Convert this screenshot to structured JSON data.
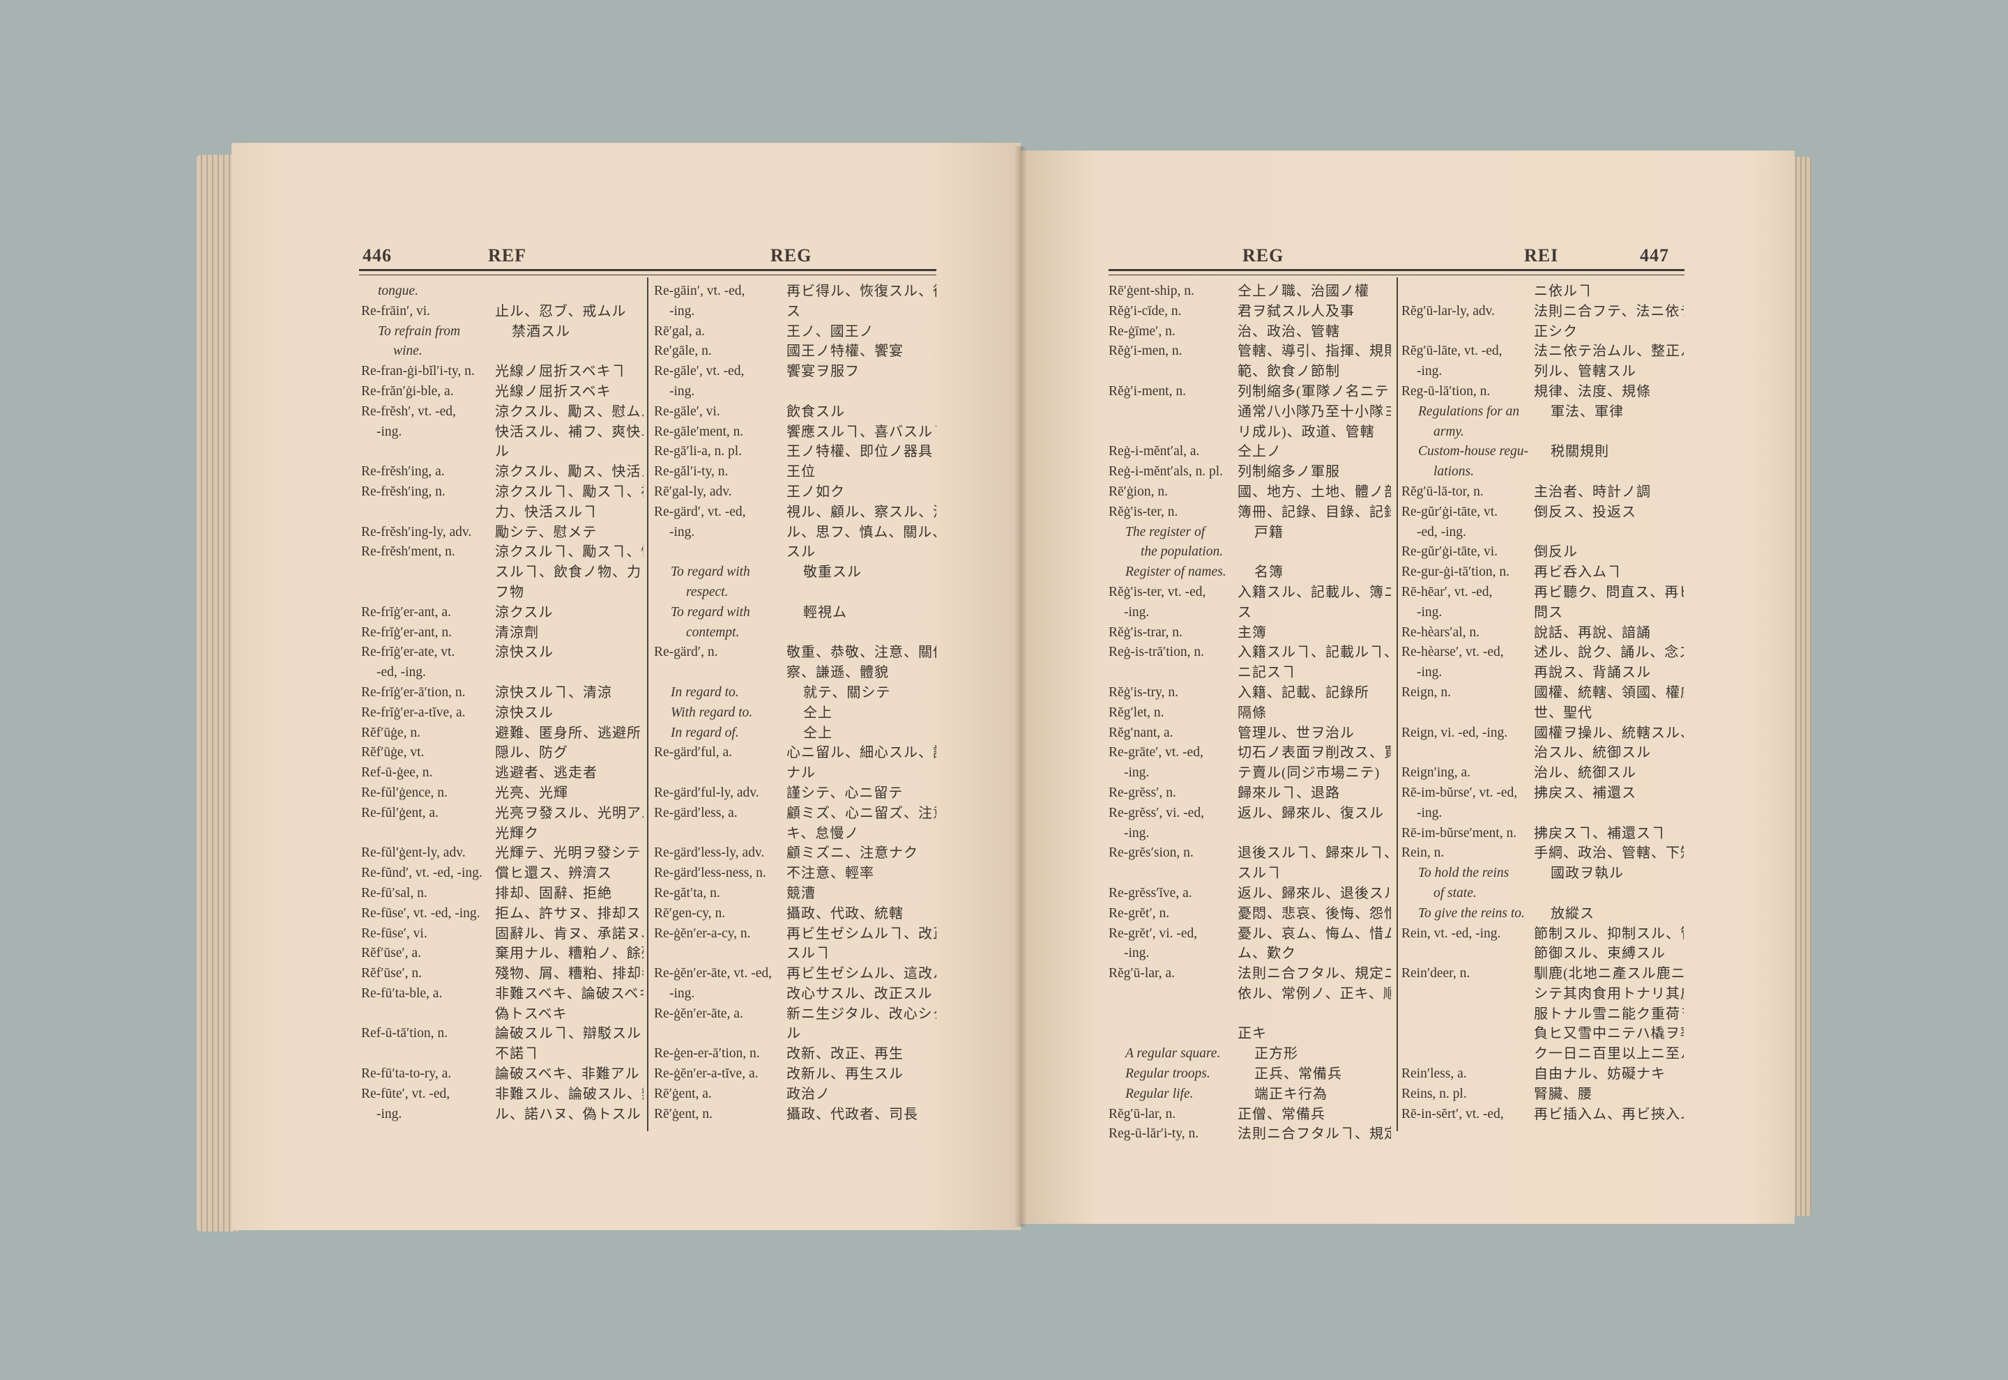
{
  "left_page": {
    "page_number": "446",
    "guide_word_left": "REF",
    "guide_word_right": "REG",
    "columns": [
      [
        {
          "en": [
            "tongue."
          ],
          "ja": [],
          "sub": true
        },
        {
          "en": [
            "Re-frāin′, vi."
          ],
          "ja": [
            "止ル、忍ブ、戒ムル"
          ]
        },
        {
          "en": [
            "To refrain from",
            "wine."
          ],
          "ja": [
            "禁酒スル"
          ],
          "sub": true
        },
        {
          "en": [
            "Re-fran-ġi-bĭl′i-ty, n."
          ],
          "ja": [
            "光線ノ屈折スベキヿ"
          ]
        },
        {
          "en": [
            "Re-frăn′ġi-ble, a."
          ],
          "ja": [
            "光線ノ屈折スベキ"
          ]
        },
        {
          "en": [
            "Re-frĕsh′, vt. -ed,",
            "-ing."
          ],
          "ja": [
            "涼クスル、勵ス、慰ムル、",
            "快活スル、補フ、爽快ニス",
            "ル"
          ]
        },
        {
          "en": [
            "Re-frĕsh′ing, a."
          ],
          "ja": [
            "涼クスル、勵ス、快活スル"
          ]
        },
        {
          "en": [
            "Re-frĕsh′ing, n."
          ],
          "ja": [
            "涼クスルヿ、勵スヿ、補",
            "力、快活スルヿ"
          ]
        },
        {
          "en": [
            "Re-frĕsh′ing-ly, adv."
          ],
          "ja": [
            "勵シテ、慰メテ"
          ]
        },
        {
          "en": [
            "Re-frĕsh′ment, n."
          ],
          "ja": [
            "涼クスルヿ、勵スヿ、快活",
            "スルヿ、飲食ノ物、力ヲ補",
            "フ物"
          ]
        },
        {
          "en": [
            "Re-frĭġ′er-ant, a."
          ],
          "ja": [
            "涼クスル"
          ]
        },
        {
          "en": [
            "Re-frĭġ′er-ant, n."
          ],
          "ja": [
            "清涼劑"
          ]
        },
        {
          "en": [
            "Re-frĭġ′er-ate, vt.",
            "-ed, -ing."
          ],
          "ja": [
            "涼快スル"
          ]
        },
        {
          "en": [
            "Re-frĭġ′er-ā′tion, n."
          ],
          "ja": [
            "涼快スルヿ、清涼"
          ]
        },
        {
          "en": [
            "Re-frĭġ′er-a-tĭve, a."
          ],
          "ja": [
            "涼快スル"
          ]
        },
        {
          "en": [
            "Rĕf′ūġe, n."
          ],
          "ja": [
            "避難、匿身所、逃避所"
          ]
        },
        {
          "en": [
            "Rĕf′ūġe, vt."
          ],
          "ja": [
            "隠ル、防グ"
          ]
        },
        {
          "en": [
            "Ref-ū-ġee, n."
          ],
          "ja": [
            "逃避者、逃走者"
          ]
        },
        {
          "en": [
            "Re-fŭl′ġence, n."
          ],
          "ja": [
            "光亮、光輝"
          ]
        },
        {
          "en": [
            "Re-fŭl′ġent, a."
          ],
          "ja": [
            "光亮ヲ發スル、光明アル、",
            "光輝ク"
          ]
        },
        {
          "en": [
            "Re-fŭl′ġent-ly, adv."
          ],
          "ja": [
            "光輝テ、光明ヲ發シテ"
          ]
        },
        {
          "en": [
            "Re-fŭnd′, vt. -ed, -ing."
          ],
          "ja": [
            "償ヒ還ス、辨濟ス"
          ]
        },
        {
          "en": [
            "Re-fū′sal, n."
          ],
          "ja": [
            "排却、固辭、拒絶"
          ]
        },
        {
          "en": [
            "Re-fūse′, vt. -ed, -ing."
          ],
          "ja": [
            "拒ム、許サヌ、排却ス"
          ]
        },
        {
          "en": [
            "Re-fūse′, vi."
          ],
          "ja": [
            "固辭ル、肯ヌ、承諾ヌ、嫌フ"
          ]
        },
        {
          "en": [
            "Rĕf′ūse′, a."
          ],
          "ja": [
            "棄用ナル、糟粕ノ、餘殘ノ"
          ]
        },
        {
          "en": [
            "Rĕf′ūse′, n."
          ],
          "ja": [
            "殘物、屑、糟粕、排却者"
          ]
        },
        {
          "en": [
            "Re-fū′ta-ble, a."
          ],
          "ja": [
            "非難スベキ、論破スベキ、",
            "偽トスベキ"
          ]
        },
        {
          "en": [
            "Ref-ū-tā′tion, n."
          ],
          "ja": [
            "論破スルヿ、辯駁スルヿ、",
            "不諾ヿ"
          ]
        },
        {
          "en": [
            "Re-fū′ta-to-ry, a."
          ],
          "ja": [
            "論破スベキ、非難アル"
          ]
        },
        {
          "en": [
            "Re-fūte′, vt. -ed,",
            "-ing."
          ],
          "ja": [
            "非難スル、論破スル、辯倒",
            "ル、諾ハヌ、偽トスル"
          ]
        }
      ],
      [
        {
          "en": [
            "Re-gāin′, vt. -ed,",
            "-ing."
          ],
          "ja": [
            "再ビ得ル、恢復スル、復獲",
            "ス"
          ]
        },
        {
          "en": [
            "Rē′gal, a."
          ],
          "ja": [
            "王ノ、國王ノ"
          ]
        },
        {
          "en": [
            "Re′gāle, n."
          ],
          "ja": [
            "國王ノ特權、饗宴"
          ]
        },
        {
          "en": [
            "Re-gāle′, vt. -ed,",
            "-ing."
          ],
          "ja": [
            "饗宴ヲ服フ"
          ]
        },
        {
          "en": [
            "Re-gāle′, vi."
          ],
          "ja": [
            "飲食スル"
          ]
        },
        {
          "en": [
            "Re-gāle′ment, n."
          ],
          "ja": [
            "饗應スルヿ、喜バスルヿ"
          ]
        },
        {
          "en": [
            "Re-gā′li-a, n. pl."
          ],
          "ja": [
            "王ノ特權、即位ノ器具"
          ]
        },
        {
          "en": [
            "Re-găl′i-ty, n."
          ],
          "ja": [
            "王位"
          ]
        },
        {
          "en": [
            "Rē′gal-ly, adv."
          ],
          "ja": [
            "王ノ如ク"
          ]
        },
        {
          "en": [
            "Re-gärd′, vt. -ed,",
            "-ing."
          ],
          "ja": [
            "視ル、顧ル、察スル、注意",
            "ル、思フ、慎ム、關ル、敬",
            "スル"
          ]
        },
        {
          "en": [
            "To regard with",
            "respect."
          ],
          "ja": [
            "敬重スル"
          ],
          "sub": true
        },
        {
          "en": [
            "To regard with",
            "contempt."
          ],
          "ja": [
            "輕視ム"
          ],
          "sub": true
        },
        {
          "en": [
            "Re-gärd′, n."
          ],
          "ja": [
            "敬重、恭敬、注意、關係、思",
            "察、謙遜、體貌"
          ]
        },
        {
          "en": [
            "In regard to."
          ],
          "ja": [
            "就テ、關シテ"
          ],
          "sub": true
        },
        {
          "en": [
            "With regard to."
          ],
          "ja": [
            "仝上"
          ],
          "sub": true
        },
        {
          "en": [
            "In regard of."
          ],
          "ja": [
            "仝上"
          ],
          "sub": true
        },
        {
          "en": [
            "Re-gärd′ful, a."
          ],
          "ja": [
            "心ニ留ル、細心スル、謹慎",
            "ナル"
          ]
        },
        {
          "en": [
            "Re-gärd′ful-ly, adv."
          ],
          "ja": [
            "謹シテ、心ニ留テ"
          ]
        },
        {
          "en": [
            "Re-gärd′less, a."
          ],
          "ja": [
            "顧ミズ、心ニ留ズ、注意ナ",
            "キ、怠慢ノ"
          ]
        },
        {
          "en": [
            "Re-gärd′less-ly, adv."
          ],
          "ja": [
            "顧ミズニ、注意ナク"
          ]
        },
        {
          "en": [
            "Re-gärd′less-ness, n."
          ],
          "ja": [
            "不注意、輕率"
          ]
        },
        {
          "en": [
            "Re-găt′ta, n."
          ],
          "ja": [
            "競漕"
          ]
        },
        {
          "en": [
            "Rē′gen-cy, n."
          ],
          "ja": [
            "攝政、代政、統轄"
          ]
        },
        {
          "en": [
            "Re-ġĕn′er-a-cy, n."
          ],
          "ja": [
            "再ビ生ゼシムルヿ、改正",
            "スルヿ"
          ]
        },
        {
          "en": [
            "Re-ġĕn′er-āte, vt. -ed,",
            "-ing."
          ],
          "ja": [
            "再ビ生ゼシムル、這改ル、",
            "改心サスル、改正スル"
          ]
        },
        {
          "en": [
            "Re-ġĕn′er-āte, a."
          ],
          "ja": [
            "新ニ生ジタル、改心シタ",
            "ル"
          ]
        },
        {
          "en": [
            "Re-ġen-er-ā′tion, n."
          ],
          "ja": [
            "改新、改正、再生"
          ]
        },
        {
          "en": [
            "Re-ġĕn′er-a-tĭve, a."
          ],
          "ja": [
            "改新ル、再生スル"
          ]
        },
        {
          "en": [
            "Rē′ġent, a."
          ],
          "ja": [
            "政治ノ"
          ]
        },
        {
          "en": [
            "Rē′ġent, n."
          ],
          "ja": [
            "攝政、代政者、司長"
          ]
        }
      ]
    ]
  },
  "right_page": {
    "page_number": "447",
    "guide_word_left": "REG",
    "guide_word_right": "REI",
    "columns": [
      [
        {
          "en": [
            "Rē′ġent-ship, n."
          ],
          "ja": [
            "仝上ノ職、治國ノ權"
          ]
        },
        {
          "en": [
            "Rĕġ′i-cīde, n."
          ],
          "ja": [
            "君ヲ弑スル人及事"
          ]
        },
        {
          "en": [
            "Re-ġīme′, n."
          ],
          "ja": [
            "治、政治、管轄"
          ]
        },
        {
          "en": [
            "Rĕġ′i-men, n."
          ],
          "ja": [
            "管轄、導引、指揮、規則、規",
            "範、飲食ノ節制"
          ]
        },
        {
          "en": [
            "Rĕġ′i-ment, n."
          ],
          "ja": [
            "列制縮多(軍隊ノ名ニテ",
            "通常八小隊乃至十小隊ヨ",
            "リ成ル)、政道、管轄"
          ]
        },
        {
          "en": [
            "Reġ-i-mĕnt′al, a."
          ],
          "ja": [
            "仝上ノ"
          ]
        },
        {
          "en": [
            "Reġ-i-mĕnt′als, n. pl."
          ],
          "ja": [
            "列制縮多ノ軍服"
          ]
        },
        {
          "en": [
            "Rē′ġion, n."
          ],
          "ja": [
            "國、地方、土地、體ノ部分"
          ]
        },
        {
          "en": [
            "Rĕġ′is-ter, n."
          ],
          "ja": [
            "簿冊、記錄、目錄、記錄者"
          ]
        },
        {
          "en": [
            "The register of",
            "the population."
          ],
          "ja": [
            "戸籍"
          ],
          "sub": true
        },
        {
          "en": [
            "Register of names."
          ],
          "ja": [
            "名簿"
          ],
          "sub": true
        },
        {
          "en": [
            "Rĕġ′is-ter, vt. -ed,",
            "-ing."
          ],
          "ja": [
            "入籍スル、記載ル、簿ニ記",
            "ス"
          ]
        },
        {
          "en": [
            "Rĕġ′is-trar, n."
          ],
          "ja": [
            "主簿"
          ]
        },
        {
          "en": [
            "Reġ-is-trā′tion, n."
          ],
          "ja": [
            "入籍スルヿ、記載ルヿ、簿",
            "ニ記スヿ"
          ]
        },
        {
          "en": [
            "Rĕġ′is-try, n."
          ],
          "ja": [
            "入籍、記載、記錄所"
          ]
        },
        {
          "en": [
            "Rĕg′let, n."
          ],
          "ja": [
            "隔條"
          ]
        },
        {
          "en": [
            "Rĕg′nant, a."
          ],
          "ja": [
            "管理ル、世ヲ治ル"
          ]
        },
        {
          "en": [
            "Re-grāte′, vt. -ed,",
            "-ing."
          ],
          "ja": [
            "切石ノ表面ヲ削改ス、買",
            "テ賣ル(同ジ市場ニテ)"
          ]
        },
        {
          "en": [
            "Re-grĕss′, n."
          ],
          "ja": [
            "歸來ルヿ、退路"
          ]
        },
        {
          "en": [
            "Re-grĕss′, vi. -ed,",
            "-ing."
          ],
          "ja": [
            "返ル、歸來ル、復スル"
          ]
        },
        {
          "en": [
            "Re-grĕs′sion, n."
          ],
          "ja": [
            "退後スルヿ、歸來ルヿ、復",
            "スルヿ"
          ]
        },
        {
          "en": [
            "Re-grĕss′ĭve, a."
          ],
          "ja": [
            "返ル、歸來ル、退後スル"
          ]
        },
        {
          "en": [
            "Re-grĕt′, n."
          ],
          "ja": [
            "憂悶、悲哀、後悔、怨恨"
          ]
        },
        {
          "en": [
            "Re-grĕt′, vi. -ed,",
            "-ing."
          ],
          "ja": [
            "憂ル、哀ム、悔ム、惜ム、恨",
            "ム、歎ク"
          ]
        },
        {
          "en": [
            "Rĕg′ū-lar, a."
          ],
          "ja": [
            "法則ニ合フタル、規定ニ",
            "依ル、常例ノ、正キ、順序",
            "",
            "正キ"
          ]
        },
        {
          "en": [
            "A regular square."
          ],
          "ja": [
            "正方形"
          ],
          "sub": true
        },
        {
          "en": [
            "Regular troops."
          ],
          "ja": [
            "正兵、常備兵"
          ],
          "sub": true
        },
        {
          "en": [
            "Regular life."
          ],
          "ja": [
            "端正キ行為"
          ],
          "sub": true
        },
        {
          "en": [
            "Rĕg′ū-lar, n."
          ],
          "ja": [
            "正僧、常備兵"
          ]
        },
        {
          "en": [
            "Reg-ū-lăr′i-ty, n."
          ],
          "ja": [
            "法則ニ合フタルヿ、規定"
          ]
        }
      ],
      [
        {
          "en": [
            ""
          ],
          "ja": [
            "ニ依ルヿ"
          ]
        },
        {
          "en": [
            "Rĕg′ū-lar-ly, adv."
          ],
          "ja": [
            "法則ニ合フテ、法ニ依テ、",
            "正シク"
          ]
        },
        {
          "en": [
            "Rĕg′ū-lāte, vt. -ed,",
            "-ing."
          ],
          "ja": [
            "法ニ依テ治ムル、整正ル、排",
            "列ル、管轄スル"
          ]
        },
        {
          "en": [
            "Reg-ū-lā′tion, n."
          ],
          "ja": [
            "規律、法度、規條"
          ]
        },
        {
          "en": [
            "Regulations for an",
            "army."
          ],
          "ja": [
            "軍法、軍律"
          ],
          "sub": true
        },
        {
          "en": [
            "Custom-house regu-",
            "lations."
          ],
          "ja": [
            "税關規則"
          ],
          "sub": true
        },
        {
          "en": [
            "Rĕg′ū-lā-tor, n."
          ],
          "ja": [
            "主治者、時計ノ調"
          ]
        },
        {
          "en": [
            "Re-gŭr′ġi-tāte, vt.",
            "-ed, -ing."
          ],
          "ja": [
            "倒反ス、投返ス"
          ]
        },
        {
          "en": [
            "Re-gŭr′ġi-tāte, vi."
          ],
          "ja": [
            "倒反ル"
          ]
        },
        {
          "en": [
            "Re-gur-ġi-tā′tion, n."
          ],
          "ja": [
            "再ビ呑入ムヿ"
          ]
        },
        {
          "en": [
            "Rē-hēar′, vt. -ed,",
            "-ing."
          ],
          "ja": [
            "再ビ聽ク、問直ス、再ビ糺",
            "問ス"
          ]
        },
        {
          "en": [
            "Re-hèars′al, n."
          ],
          "ja": [
            "說話、再說、諳誦"
          ]
        },
        {
          "en": [
            "Re-hèarse′, vt. -ed,",
            "-ing."
          ],
          "ja": [
            "述ル、說ク、誦ル、念ズル、",
            "再說ス、背誦スル"
          ]
        },
        {
          "en": [
            "Reign, n."
          ],
          "ja": [
            "國權、統轄、領國、權威、治",
            "世、聖代"
          ]
        },
        {
          "en": [
            "Reign, vi. -ed, -ing."
          ],
          "ja": [
            "國權ヲ操ル、統轄スル、主",
            "治スル、統御スル"
          ]
        },
        {
          "en": [
            "Reign′ing, a."
          ],
          "ja": [
            "治ル、統御スル"
          ]
        },
        {
          "en": [
            "Rē-im-bŭrse′, vt. -ed,",
            "-ing."
          ],
          "ja": [
            "拂戻ス、補還ス"
          ]
        },
        {
          "en": [
            "Rē-im-bŭrse′ment, n."
          ],
          "ja": [
            "拂戻スヿ、補還スヿ"
          ]
        },
        {
          "en": [
            "Rein, n."
          ],
          "ja": [
            "手綱、政治、管轄、下知"
          ]
        },
        {
          "en": [
            "To hold the reins",
            "of state."
          ],
          "ja": [
            "國政ヲ執ル"
          ],
          "sub": true
        },
        {
          "en": [
            "To give the reins to."
          ],
          "ja": [
            "放縱ス"
          ],
          "sub": true
        },
        {
          "en": [
            "Rein, vt. -ed, -ing."
          ],
          "ja": [
            "節制スル、抑制スル、管轄スル、",
            "節御スル、束縛スル"
          ]
        },
        {
          "en": [
            "Rein′deer, n."
          ],
          "ja": [
            "馴鹿(北地ニ產スル鹿ニ",
            "シテ其肉食用トナリ其皮衣",
            "服トナル雪ニ能ク重荷ヲ",
            "負ヒ又雪中ニテハ橇ヲ率",
            "ク一日ニ百里以上ニ至ル)"
          ]
        },
        {
          "en": [
            "Rein′less, a."
          ],
          "ja": [
            "自由ナル、妨礙ナキ"
          ]
        },
        {
          "en": [
            "Reins, n. pl."
          ],
          "ja": [
            "腎臟、腰"
          ]
        },
        {
          "en": [
            "Rē-in-sĕrt′, vt. -ed,"
          ],
          "ja": [
            "再ビ插入ム、再ビ挾入ム"
          ]
        }
      ]
    ]
  }
}
